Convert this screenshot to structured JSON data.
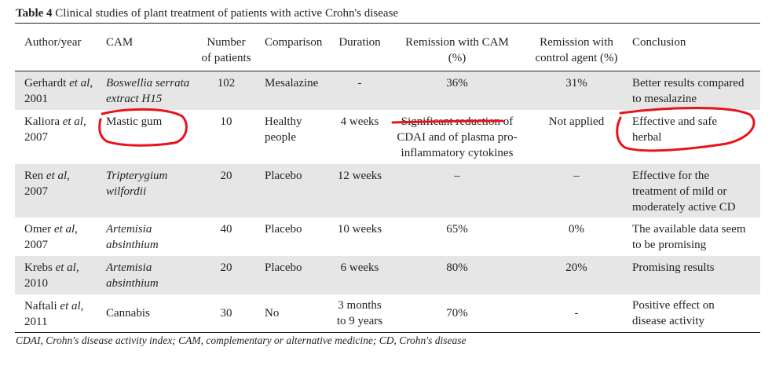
{
  "caption": {
    "label": "Table 4",
    "text": "Clinical studies of plant treatment of patients with active Crohn's disease"
  },
  "headers": {
    "author": "Author/year",
    "cam": "CAM",
    "number": [
      "Number",
      "of patients"
    ],
    "comparison": "Comparison",
    "duration": "Duration",
    "remission_cam": [
      "Remission with CAM",
      "(%)"
    ],
    "remission_control": [
      "Remission with",
      "control agent (%)"
    ],
    "conclusion": "Conclusion"
  },
  "rows": [
    {
      "author": [
        "Gerhardt ",
        "et al",
        ","
      ],
      "year": "2001",
      "cam": [
        "Boswellia serrata",
        "extract H15"
      ],
      "cam_italic": true,
      "number": "102",
      "comparison": [
        "Mesalazine"
      ],
      "duration": [
        "-"
      ],
      "remission_cam": [
        "36%"
      ],
      "remission_control": [
        "31%"
      ],
      "conclusion": [
        "Better results compared",
        "to mesalazine"
      ]
    },
    {
      "author": [
        "Kaliora ",
        "et al",
        ","
      ],
      "year": "2007",
      "cam": [
        "Mastic gum"
      ],
      "cam_italic": false,
      "number": "10",
      "comparison": [
        "Healthy",
        "people"
      ],
      "duration": [
        "4 weeks"
      ],
      "remission_cam": [
        "Significant reduction of",
        "CDAI and of plasma pro-",
        "inflammatory cytokines"
      ],
      "remission_control": [
        "Not applied"
      ],
      "conclusion": [
        "Effective and safe",
        "herbal"
      ]
    },
    {
      "author": [
        "Ren ",
        "et al",
        ","
      ],
      "year": "2007",
      "cam": [
        "Tripterygium",
        "wilfordii"
      ],
      "cam_italic": true,
      "number": "20",
      "comparison": [
        "Placebo"
      ],
      "duration": [
        "12 weeks"
      ],
      "remission_cam": [
        "–"
      ],
      "remission_control": [
        "–"
      ],
      "conclusion": [
        "Effective for the",
        "treatment of mild or",
        "moderately active CD"
      ]
    },
    {
      "author": [
        "Omer ",
        "et al",
        ","
      ],
      "year": "2007",
      "cam": [
        "Artemisia",
        "absinthium"
      ],
      "cam_italic": true,
      "number": "40",
      "comparison": [
        "Placebo"
      ],
      "duration": [
        "10 weeks"
      ],
      "remission_cam": [
        "65%"
      ],
      "remission_control": [
        "0%"
      ],
      "conclusion": [
        "The available data seem",
        "to be promising"
      ]
    },
    {
      "author": [
        "Krebs ",
        "et al",
        ","
      ],
      "year": "2010",
      "cam": [
        "Artemisia",
        "absinthium"
      ],
      "cam_italic": true,
      "number": "20",
      "comparison": [
        "Placebo"
      ],
      "duration": [
        "6 weeks"
      ],
      "remission_cam": [
        "80%"
      ],
      "remission_control": [
        "20%"
      ],
      "conclusion": [
        "Promising results"
      ]
    },
    {
      "author": [
        "Naftali ",
        "et al",
        ","
      ],
      "year": "2011",
      "cam": [
        "Cannabis"
      ],
      "cam_italic": false,
      "number": "30",
      "comparison": [
        "No"
      ],
      "duration": [
        "3 months",
        "to 9 years"
      ],
      "remission_cam": [
        "70%"
      ],
      "remission_control": [
        "-"
      ],
      "conclusion": [
        "Positive effect on",
        "disease activity"
      ]
    }
  ],
  "footnote": "CDAI, Crohn's disease activity index; CAM, complementary or alternative medicine; CD, Crohn's disease",
  "annotation_color": "#e8141b"
}
